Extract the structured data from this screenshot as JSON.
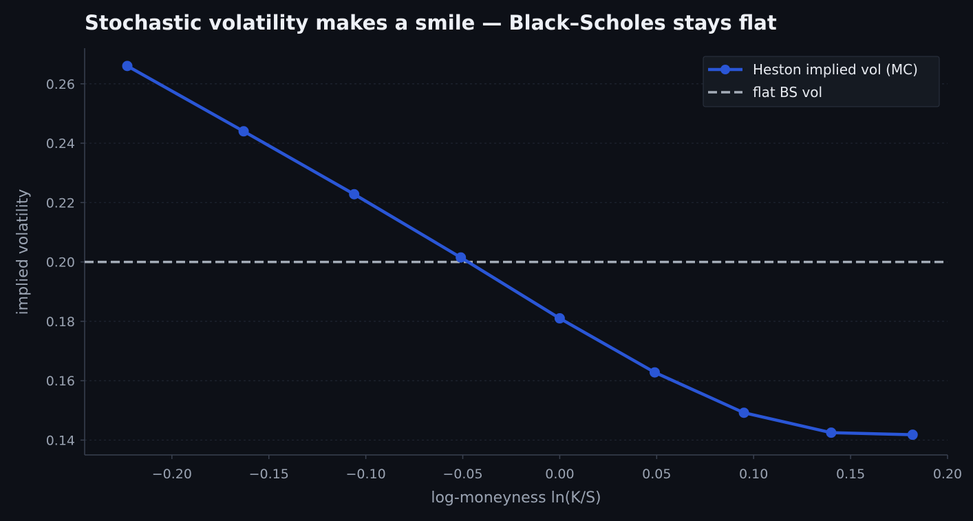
{
  "chart_data": {
    "type": "line",
    "title": "Stochastic volatility makes a smile — Black–Scholes stays flat",
    "xlabel": "log-moneyness ln(K/S)",
    "ylabel": "implied volatility",
    "xlim": [
      -0.245,
      0.2
    ],
    "ylim": [
      0.135,
      0.272
    ],
    "x_ticks": [
      -0.2,
      -0.15,
      -0.1,
      -0.05,
      0.0,
      0.05,
      0.1,
      0.15,
      0.2
    ],
    "x_tick_labels": [
      "−0.20",
      "−0.15",
      "−0.10",
      "−0.05",
      "0.00",
      "0.05",
      "0.10",
      "0.15",
      "0.20"
    ],
    "y_ticks": [
      0.14,
      0.16,
      0.18,
      0.2,
      0.22,
      0.24,
      0.26
    ],
    "y_tick_labels": [
      "0.14",
      "0.16",
      "0.18",
      "0.20",
      "0.22",
      "0.24",
      "0.26"
    ],
    "grid": "horizontal dotted",
    "legend_position": "top-right",
    "series": [
      {
        "name": "Heston implied vol (MC)",
        "style": "solid line with circle markers",
        "color": "#2a56d6",
        "x": [
          -0.223,
          -0.163,
          -0.106,
          -0.051,
          0.0,
          0.049,
          0.095,
          0.14,
          0.182
        ],
        "y": [
          0.266,
          0.244,
          0.2228,
          0.2015,
          0.181,
          0.1628,
          0.1492,
          0.1425,
          0.1418
        ]
      },
      {
        "name": "flat BS vol",
        "style": "dashed horizontal line",
        "color": "#a4acb8",
        "y": 0.2
      }
    ]
  }
}
